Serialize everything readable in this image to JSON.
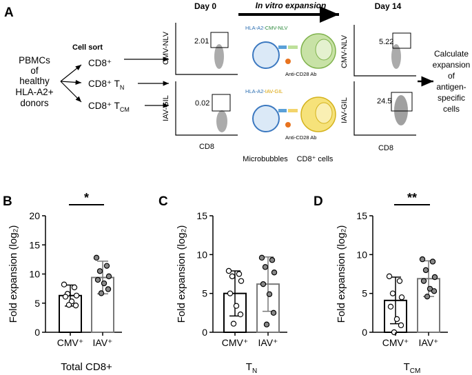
{
  "panel_a": {
    "label": "A",
    "donors": [
      "PBMCs",
      "of",
      "healthy",
      "HLA-A2+",
      "donors"
    ],
    "cell_sort": "Cell sort",
    "populations": [
      {
        "text": "CD8⁺"
      },
      {
        "text": "CD8⁺ T",
        "sub": "N"
      },
      {
        "text": "CD8⁺ T",
        "sub": "CM"
      }
    ],
    "day0": "Day 0",
    "expansion": "In vitro expansion",
    "day14": "Day 14",
    "y_labels": [
      "CMV-NLV",
      "IAV-GIL"
    ],
    "x_label": "CD8",
    "gates_day0": [
      "2.01",
      "0.02"
    ],
    "gates_day14": [
      "5.22",
      "24.5"
    ],
    "reagents": [
      {
        "prefix": "HLA-A2-",
        "peptide": "CMV-NLV",
        "antibody": "Anti-CD28 Ab"
      },
      {
        "prefix": "HLA-A2-",
        "peptide": "IAV-GIL",
        "antibody": "Anti-CD28 Ab"
      }
    ],
    "microbubbles": "Microbubbles",
    "cells": "CD8⁺ cells",
    "result": [
      "Calculate",
      "expansion",
      "of",
      "antigen-",
      "specific",
      "cells"
    ]
  },
  "chart_data": [
    {
      "type": "bar",
      "panel": "B",
      "categories": [
        "CMV⁺",
        "IAV⁺"
      ],
      "values": [
        6.3,
        9.4
      ],
      "errors": [
        1.8,
        2.8
      ],
      "points": [
        [
          8.2,
          7.7,
          6.6,
          6.3,
          6.1,
          5.3,
          4.6,
          4.7
        ],
        [
          12.8,
          11.4,
          10.5,
          9.6,
          9.0,
          8.4,
          7.4,
          6.7
        ]
      ],
      "bar_colors": [
        "#000000",
        "#777777"
      ],
      "point_colors": [
        "#ffffff",
        "#888888"
      ],
      "ylabel": "Fold expansion (log₂)",
      "xlabel": {
        "text": "Total CD8+"
      },
      "ylim": [
        0,
        20
      ],
      "yticks": [
        0,
        5,
        10,
        15,
        20
      ],
      "significance": "*"
    },
    {
      "type": "bar",
      "panel": "C",
      "categories": [
        "CMV⁺",
        "IAV⁺"
      ],
      "values": [
        5.0,
        6.2
      ],
      "errors": [
        2.9,
        3.5
      ],
      "points": [
        [
          7.9,
          7.5,
          7.2,
          6.6,
          5.0,
          3.4,
          2.3,
          1.1
        ],
        [
          9.6,
          9.3,
          8.4,
          7.7,
          6.2,
          4.9,
          2.5,
          1.0
        ]
      ],
      "bar_colors": [
        "#000000",
        "#777777"
      ],
      "point_colors": [
        "#ffffff",
        "#888888"
      ],
      "ylabel": "Fold expansion (log₂)",
      "xlabel": {
        "text": "T",
        "sub": "N"
      },
      "ylim": [
        0,
        15
      ],
      "yticks": [
        0,
        5,
        10,
        15
      ]
    },
    {
      "type": "bar",
      "panel": "D",
      "categories": [
        "CMV⁺",
        "IAV⁺"
      ],
      "values": [
        4.1,
        6.9
      ],
      "errors": [
        3.0,
        2.3
      ],
      "points": [
        [
          7.2,
          6.6,
          5.0,
          4.5,
          3.3,
          1.7,
          0.9,
          0.0
        ],
        [
          9.4,
          9.1,
          8.0,
          7.1,
          6.6,
          5.6,
          5.3,
          4.6
        ]
      ],
      "bar_colors": [
        "#000000",
        "#777777"
      ],
      "point_colors": [
        "#ffffff",
        "#888888"
      ],
      "ylabel": "Fold expansion (log₂)",
      "xlabel": {
        "text": "T",
        "sub": "CM"
      },
      "ylim": [
        0,
        15
      ],
      "yticks": [
        0,
        5,
        10,
        15
      ],
      "significance": "**"
    }
  ]
}
